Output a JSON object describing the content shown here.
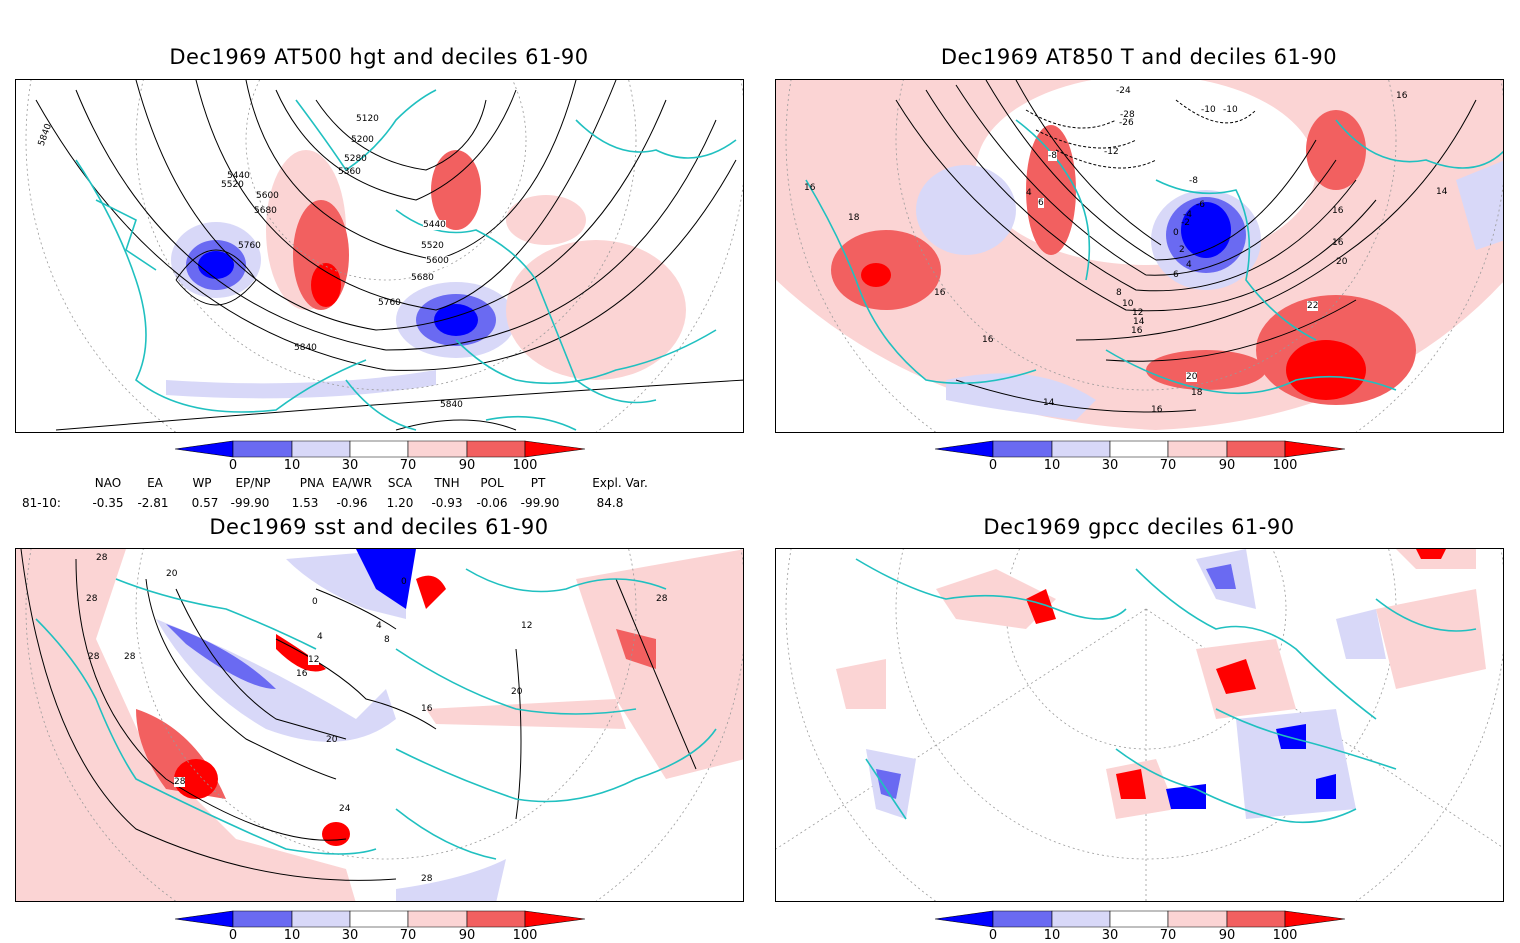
{
  "panels": [
    {
      "title": "Dec1969 AT500 hgt and deciles 61-90"
    },
    {
      "title": "Dec1969 AT850 T and deciles 61-90"
    },
    {
      "title": "Dec1969 sst and deciles 61-90"
    },
    {
      "title": "Dec1969 gpcc deciles 61-90"
    }
  ],
  "colorbar": {
    "labels": [
      "0",
      "10",
      "30",
      "70",
      "90",
      "100"
    ],
    "colors": [
      "#0000ff",
      "#6a6af2",
      "#d8d8f8",
      "#ffffff",
      "#fbd4d4",
      "#f26060",
      "#ff0000"
    ]
  },
  "contour_labels": {
    "hgt": [
      "5840",
      "5120",
      "5200",
      "5280",
      "5360",
      "5440",
      "5520",
      "5600",
      "5680",
      "5760",
      "5440",
      "5520",
      "5600",
      "5680",
      "5760",
      "5840",
      "5840"
    ],
    "t850": [
      "-24",
      "-26",
      "-28",
      "-12",
      "-8",
      "-10",
      "-10",
      "16",
      "16",
      "18",
      "4",
      "6",
      "-8",
      "-6",
      "-4",
      "-2",
      "0",
      "2",
      "4",
      "6",
      "8",
      "10",
      "12",
      "14",
      "16",
      "16",
      "14",
      "16",
      "16",
      "20",
      "22",
      "20",
      "18",
      "16",
      "14",
      "16"
    ],
    "sst": [
      "28",
      "20",
      "28",
      "28",
      "28",
      "0",
      "0",
      "4",
      "4",
      "8",
      "12",
      "16",
      "16",
      "20",
      "20",
      "24",
      "28",
      "28",
      "28",
      "12"
    ]
  },
  "teleconnections": {
    "header": [
      "NAO",
      "EA",
      "WP",
      "EP/NP",
      "PNA",
      "EA/WR",
      "SCA",
      "TNH",
      "POL",
      "PT",
      "Expl. Var."
    ],
    "row_label": "81-10:",
    "values": [
      "-0.35",
      "-2.81",
      "0.57",
      "-99.90",
      "1.53",
      "-0.96",
      "1.20",
      "-0.93",
      "-0.06",
      "-99.90",
      "84.8"
    ]
  },
  "colors": {
    "coast": "#20c0c0",
    "contour": "#000000",
    "grid": "#999999"
  }
}
